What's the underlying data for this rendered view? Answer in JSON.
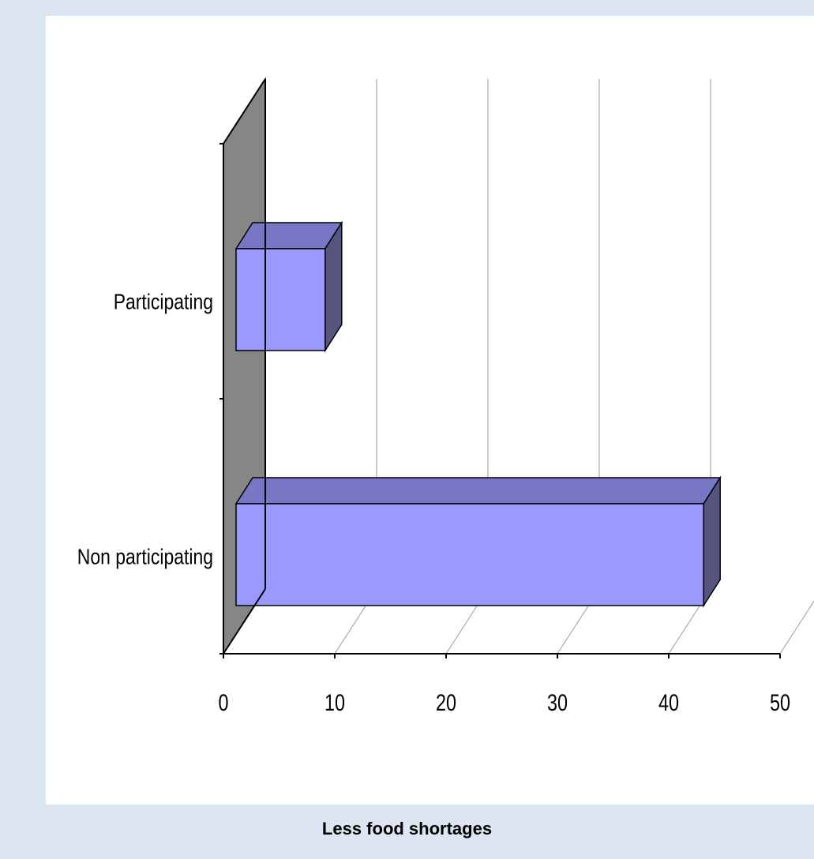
{
  "chart_data": {
    "type": "bar",
    "orientation": "horizontal",
    "style": "3d",
    "categories": [
      "Participating",
      "Non participating"
    ],
    "values": [
      8,
      42
    ],
    "xlim": [
      0,
      50
    ],
    "x_ticks": [
      "0",
      "10",
      "20",
      "30",
      "40",
      "50"
    ],
    "title": "",
    "xlabel": "Less food shortages",
    "ylabel": "",
    "grid": true,
    "legend": "none"
  },
  "colors": {
    "page_background": "#dce6f2",
    "panel_background": "#ffffff",
    "bar_front": "#9999ff",
    "bar_top": "#7777c6",
    "bar_side": "#55557f",
    "back_wall": "#868686"
  }
}
